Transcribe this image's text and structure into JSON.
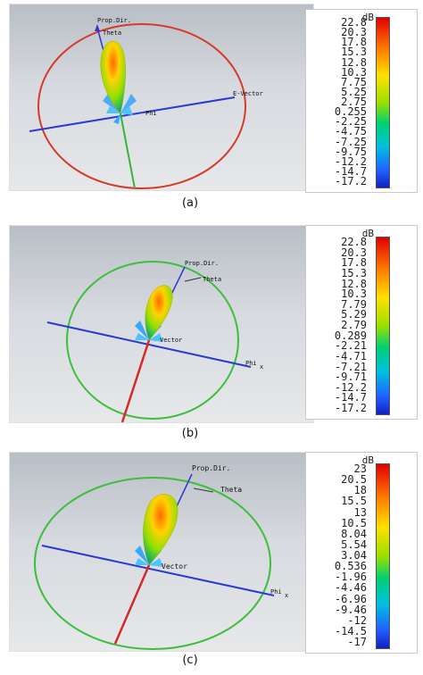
{
  "panels": [
    {
      "caption": "(a)",
      "unit": "dB",
      "ticks": [
        "22.8",
        "20.3",
        "17.8",
        "15.3",
        "12.8",
        "10.3",
        "7.75",
        "5.25",
        "2.75",
        "0.255",
        "-2.25",
        "-4.75",
        "-7.25",
        "-9.75",
        "-12.2",
        "-14.7",
        "-17.2"
      ],
      "labels": {
        "prop": "Prop.Dir.",
        "theta": "Theta",
        "phi": "Phi",
        "vector": "E-Vector"
      },
      "circle_color": "#d63a2a"
    },
    {
      "caption": "(b)",
      "unit": "dB",
      "ticks": [
        "22.8",
        "20.3",
        "17.8",
        "15.3",
        "12.8",
        "10.3",
        "7.79",
        "5.29",
        "2.79",
        "0.289",
        "-2.21",
        "-4.71",
        "-7.21",
        "-9.71",
        "-12.2",
        "-14.7",
        "-17.2"
      ],
      "labels": {
        "prop": "Prop.Dir.",
        "theta": "Theta",
        "phi": "Phi",
        "vector": "Vector",
        "x": "x"
      },
      "circle_color": "#3cbf3c"
    },
    {
      "caption": "(c)",
      "unit": "dB",
      "ticks": [
        "23",
        "20.5",
        "18",
        "15.5",
        "13",
        "10.5",
        "8.04",
        "5.54",
        "3.04",
        "0.536",
        "-1.96",
        "-4.46",
        "-6.96",
        "-9.46",
        "-12",
        "-14.5",
        "-17"
      ],
      "labels": {
        "prop": "Prop.Dir.",
        "theta": "Theta",
        "phi": "Phi",
        "vector": "Vector",
        "x": "x"
      },
      "circle_color": "#3cbf3c"
    }
  ]
}
